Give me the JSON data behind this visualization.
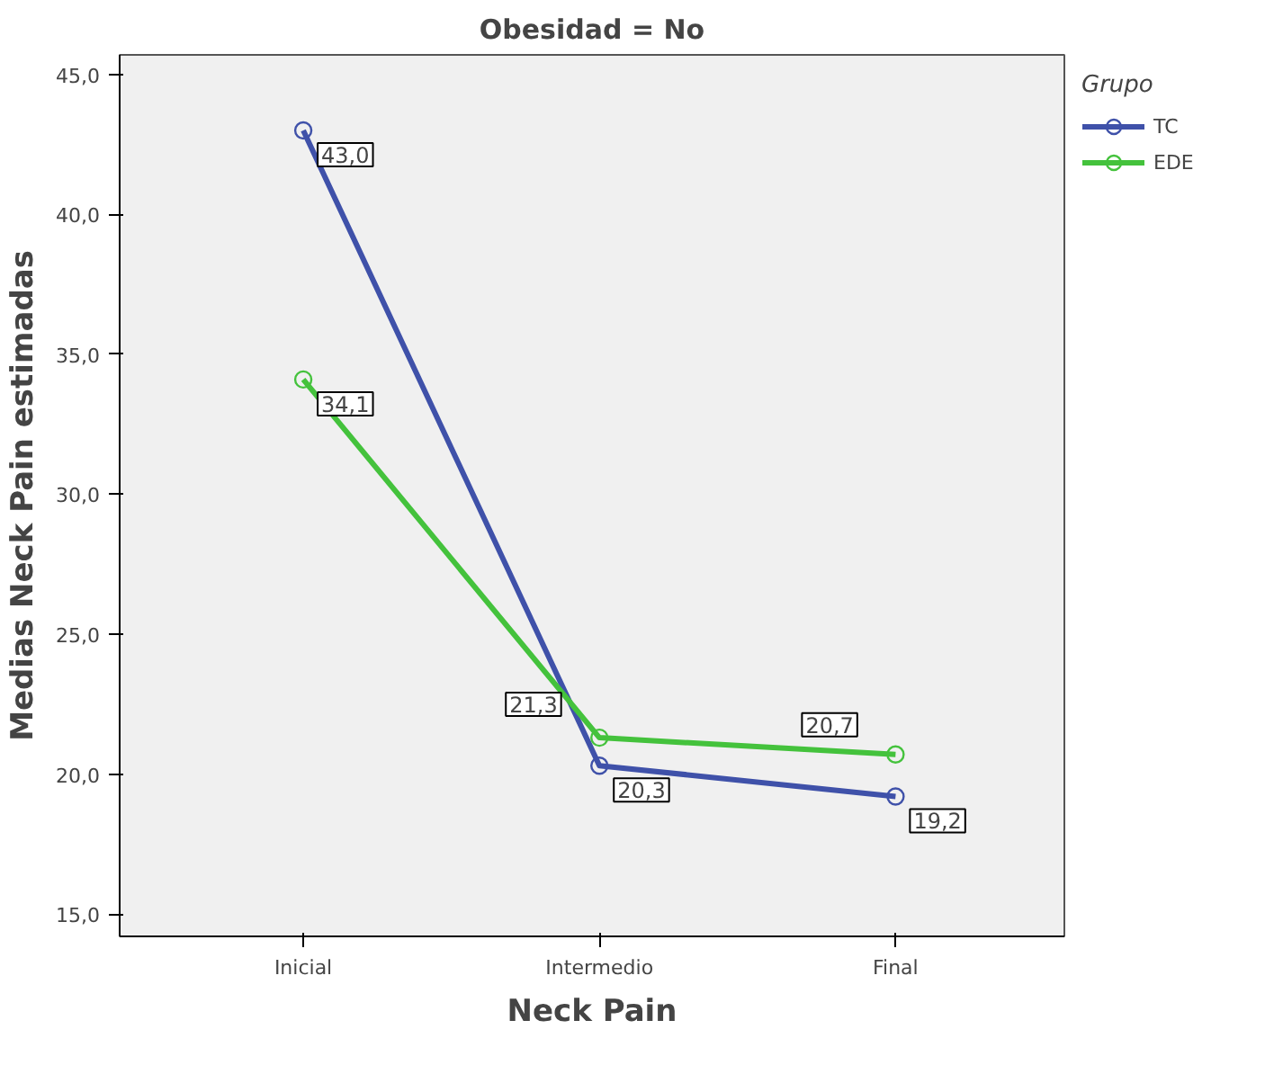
{
  "chart_data": {
    "type": "line",
    "title": "Obesidad = No",
    "xlabel": "Neck Pain",
    "ylabel": "Medias Neck Pain estimadas",
    "legend_title": "Grupo",
    "categories": [
      "Inicial",
      "Intermedio",
      "Final"
    ],
    "series": [
      {
        "name": "TC",
        "color": "#3f51a9",
        "values": [
          43.0,
          20.3,
          19.2
        ],
        "value_labels": [
          "43,0",
          "20,3",
          "19,2"
        ]
      },
      {
        "name": "EDE",
        "color": "#44c23c",
        "values": [
          34.1,
          21.3,
          20.7
        ],
        "value_labels": [
          "34,1",
          "21,3",
          "20,7"
        ]
      }
    ],
    "ylim": [
      14.2,
      45.7
    ],
    "yticks": [
      {
        "value": 15,
        "label": "15,0"
      },
      {
        "value": 20,
        "label": "20,0"
      },
      {
        "value": 25,
        "label": "25,0"
      },
      {
        "value": 30,
        "label": "30,0"
      },
      {
        "value": 35,
        "label": "35,0"
      },
      {
        "value": 40,
        "label": "40,0"
      },
      {
        "value": 45,
        "label": "45,0"
      }
    ],
    "marker": "circle",
    "line_style": "solid",
    "grid": false,
    "legend": "top right"
  }
}
